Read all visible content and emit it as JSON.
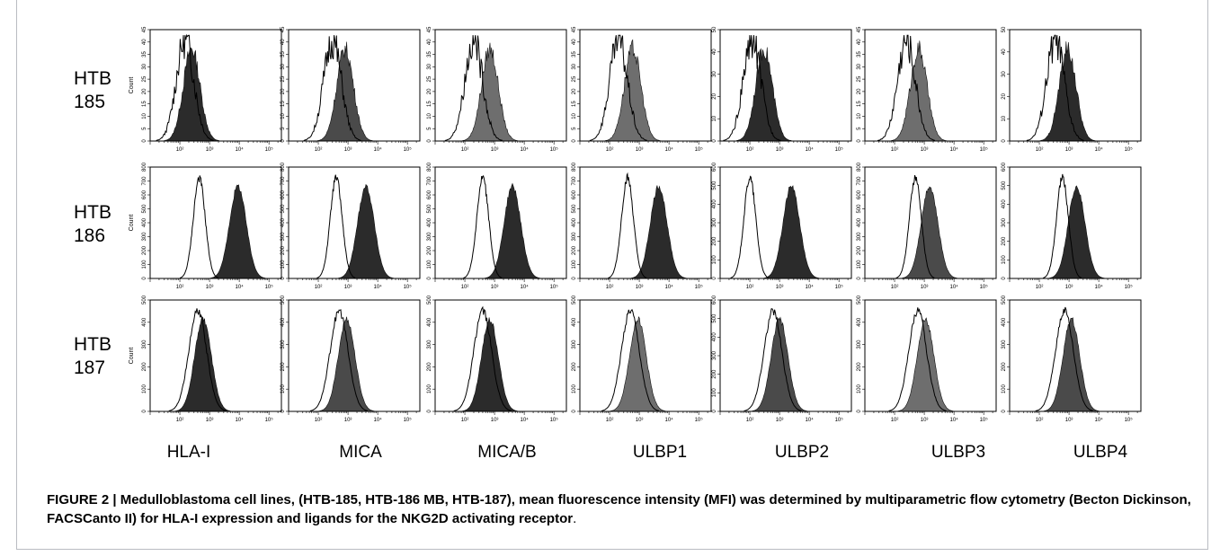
{
  "rows": [
    {
      "label_line1": "HTB",
      "label_line2": "185",
      "ytitle": "Count",
      "yticks": {
        "HLA-I": [
          "0",
          "5",
          "10",
          "15",
          "20",
          "25",
          "30",
          "35",
          "40",
          "45"
        ],
        "MICA": [
          "0",
          "5",
          "10",
          "15",
          "20",
          "25",
          "30",
          "35",
          "40",
          "45"
        ],
        "MICA/B": [
          "0",
          "5",
          "10",
          "15",
          "20",
          "25",
          "30",
          "35",
          "40",
          "45"
        ],
        "ULBP1": [
          "0",
          "5",
          "10",
          "15",
          "20",
          "25",
          "30",
          "35",
          "40",
          "45"
        ],
        "ULBP2": [
          "0",
          "10",
          "20",
          "30",
          "40",
          "50"
        ],
        "ULBP3": [
          "0",
          "5",
          "10",
          "15",
          "20",
          "25",
          "30",
          "35",
          "40",
          "45"
        ],
        "ULBP4": [
          "0",
          "10",
          "20",
          "30",
          "40",
          "50"
        ]
      }
    },
    {
      "label_line1": "HTB",
      "label_line2": "186",
      "ytitle": "Count",
      "yticks": {
        "HLA-I": [
          "0",
          "100",
          "200",
          "300",
          "400",
          "500",
          "600",
          "700",
          "800"
        ],
        "MICA": [
          "0",
          "100",
          "200",
          "300",
          "400",
          "500",
          "600",
          "700",
          "800"
        ],
        "MICA/B": [
          "0",
          "100",
          "200",
          "300",
          "400",
          "500",
          "600",
          "700",
          "800"
        ],
        "ULBP1": [
          "0",
          "100",
          "200",
          "300",
          "400",
          "500",
          "600",
          "700",
          "800"
        ],
        "ULBP2": [
          "0",
          "100",
          "200",
          "300",
          "400",
          "500",
          "600"
        ],
        "ULBP3": [
          "0",
          "100",
          "200",
          "300",
          "400",
          "500",
          "600",
          "700",
          "800"
        ],
        "ULBP4": [
          "0",
          "100",
          "200",
          "300",
          "400",
          "500",
          "600"
        ]
      }
    },
    {
      "label_line1": "HTB",
      "label_line2": "187",
      "ytitle": "Count",
      "yticks": {
        "HLA-I": [
          "0",
          "100",
          "200",
          "300",
          "400",
          "500"
        ],
        "MICA": [
          "0",
          "100",
          "200",
          "300",
          "400",
          "500"
        ],
        "MICA/B": [
          "0",
          "100",
          "200",
          "300",
          "400",
          "500"
        ],
        "ULBP1": [
          "0",
          "100",
          "200",
          "300",
          "400",
          "500"
        ],
        "ULBP2": [
          "0",
          "100",
          "200",
          "300",
          "400",
          "500",
          "600"
        ],
        "ULBP3": [
          "0",
          "100",
          "200",
          "300",
          "400",
          "500"
        ],
        "ULBP4": [
          "0",
          "100",
          "200",
          "300",
          "400",
          "500"
        ]
      }
    }
  ],
  "columns": [
    "HLA-I",
    "MICA",
    "MICA/B",
    "ULBP1",
    "ULBP2",
    "ULBP3",
    "ULBP4"
  ],
  "xticks": [
    "10²",
    "10³",
    "10⁴",
    "10⁵"
  ],
  "caption": {
    "bold": "FIGURE 2 | Medulloblastoma cell lines, (HTB-185, HTB-186 MB, HTB-187), mean fluorescence intensity (MFI) was determined by multiparametric flow cytometry (Becton Dickinson, FACSCanto II) for HLA-I expression and ligands for the NKG2D activating receptor",
    "tail": "."
  },
  "chart_data": {
    "type": "area",
    "title": "",
    "xscale": "log",
    "xlim": [
      10,
      262144
    ],
    "grid": false,
    "legend": "none",
    "colors": {
      "filled_dark": "#2b2b2b",
      "filled_mid": "#4a4a4a",
      "filled_light": "#6e6e6e",
      "isotype": "#000000"
    },
    "panels": [
      {
        "row": "HTB 185",
        "column": "HLA-I",
        "ylim": [
          0,
          45
        ],
        "isotype_peak": 150,
        "stained_peak": 250,
        "stained_color": "filled_dark"
      },
      {
        "row": "HTB 185",
        "column": "MICA",
        "ylim": [
          0,
          45
        ],
        "isotype_peak": 300,
        "stained_peak": 800,
        "stained_color": "filled_mid"
      },
      {
        "row": "HTB 185",
        "column": "MICA/B",
        "ylim": [
          0,
          45
        ],
        "isotype_peak": 200,
        "stained_peak": 700,
        "stained_color": "filled_light"
      },
      {
        "row": "HTB 185",
        "column": "ULBP1",
        "ylim": [
          0,
          45
        ],
        "isotype_peak": 200,
        "stained_peak": 600,
        "stained_color": "filled_light"
      },
      {
        "row": "HTB 185",
        "column": "ULBP2",
        "ylim": [
          0,
          50
        ],
        "isotype_peak": 120,
        "stained_peak": 300,
        "stained_color": "filled_dark"
      },
      {
        "row": "HTB 185",
        "column": "ULBP3",
        "ylim": [
          0,
          45
        ],
        "isotype_peak": 250,
        "stained_peak": 650,
        "stained_color": "filled_light"
      },
      {
        "row": "HTB 185",
        "column": "ULBP4",
        "ylim": [
          0,
          50
        ],
        "isotype_peak": 350,
        "stained_peak": 900,
        "stained_color": "filled_dark"
      },
      {
        "row": "HTB 186",
        "column": "HLA-I",
        "ylim": [
          0,
          800
        ],
        "isotype_peak": 450,
        "stained_peak": 9000,
        "stained_color": "filled_dark"
      },
      {
        "row": "HTB 186",
        "column": "MICA",
        "ylim": [
          0,
          800
        ],
        "isotype_peak": 400,
        "stained_peak": 4000,
        "stained_color": "filled_dark"
      },
      {
        "row": "HTB 186",
        "column": "MICA/B",
        "ylim": [
          0,
          800
        ],
        "isotype_peak": 400,
        "stained_peak": 4000,
        "stained_color": "filled_dark"
      },
      {
        "row": "HTB 186",
        "column": "ULBP1",
        "ylim": [
          0,
          800
        ],
        "isotype_peak": 400,
        "stained_peak": 4500,
        "stained_color": "filled_dark"
      },
      {
        "row": "HTB 186",
        "column": "ULBP2",
        "ylim": [
          0,
          600
        ],
        "isotype_peak": 100,
        "stained_peak": 2500,
        "stained_color": "filled_dark"
      },
      {
        "row": "HTB 186",
        "column": "ULBP3",
        "ylim": [
          0,
          800
        ],
        "isotype_peak": 500,
        "stained_peak": 1500,
        "stained_color": "filled_mid"
      },
      {
        "row": "HTB 186",
        "column": "ULBP4",
        "ylim": [
          0,
          600
        ],
        "isotype_peak": 600,
        "stained_peak": 1800,
        "stained_color": "filled_dark"
      },
      {
        "row": "HTB 187",
        "column": "HLA-I",
        "ylim": [
          0,
          500
        ],
        "isotype_peak": 400,
        "stained_peak": 600,
        "stained_color": "filled_dark"
      },
      {
        "row": "HTB 187",
        "column": "MICA",
        "ylim": [
          0,
          500
        ],
        "isotype_peak": 500,
        "stained_peak": 900,
        "stained_color": "filled_mid"
      },
      {
        "row": "HTB 187",
        "column": "MICA/B",
        "ylim": [
          0,
          500
        ],
        "isotype_peak": 400,
        "stained_peak": 700,
        "stained_color": "filled_dark"
      },
      {
        "row": "HTB 187",
        "column": "ULBP1",
        "ylim": [
          0,
          500
        ],
        "isotype_peak": 500,
        "stained_peak": 900,
        "stained_color": "filled_light"
      },
      {
        "row": "HTB 187",
        "column": "ULBP2",
        "ylim": [
          0,
          600
        ],
        "isotype_peak": 600,
        "stained_peak": 1000,
        "stained_color": "filled_mid"
      },
      {
        "row": "HTB 187",
        "column": "ULBP3",
        "ylim": [
          0,
          500
        ],
        "isotype_peak": 600,
        "stained_peak": 1100,
        "stained_color": "filled_light"
      },
      {
        "row": "HTB 187",
        "column": "ULBP4",
        "ylim": [
          0,
          500
        ],
        "isotype_peak": 700,
        "stained_peak": 1200,
        "stained_color": "filled_mid"
      }
    ]
  }
}
